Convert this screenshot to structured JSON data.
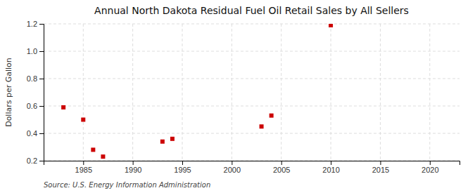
{
  "chart_data": {
    "type": "scatter",
    "title": "Annual North Dakota Residual Fuel Oil Retail Sales by All Sellers",
    "ylabel": "Dollars per Gallon",
    "annotations": [
      "Source: U.S. Energy Information Administration"
    ],
    "x": [
      1983,
      1985,
      1986,
      1987,
      1993,
      1994,
      2003,
      2004,
      2010
    ],
    "values": [
      0.59,
      0.5,
      0.28,
      0.23,
      0.34,
      0.36,
      0.45,
      0.53,
      1.19
    ],
    "color": "#cc0000",
    "marker": "square",
    "grid": true,
    "xlim": [
      1981,
      2023
    ],
    "ylim": [
      0.2,
      1.2
    ],
    "xticks": [
      1985,
      1990,
      1995,
      2000,
      2005,
      2010,
      2015,
      2020
    ],
    "yticks": [
      0.2,
      0.4,
      0.6,
      0.8,
      {
        "value": 1,
        "label": "1.0"
      },
      1.2
    ]
  }
}
